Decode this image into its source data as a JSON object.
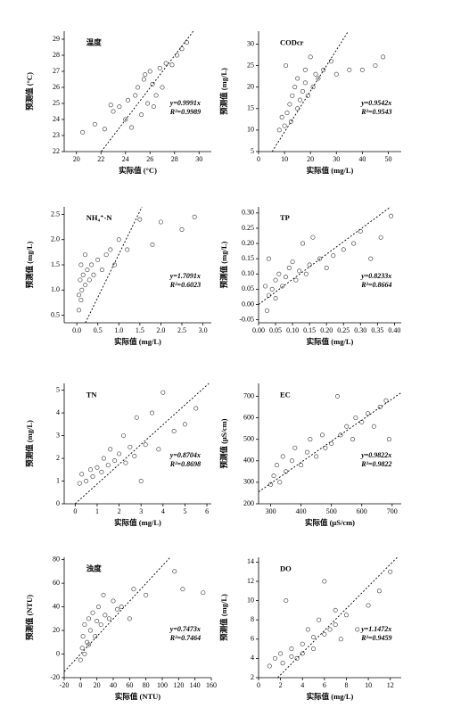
{
  "chart_data": [
    {
      "type": "scatter",
      "label": "温度",
      "xlabel": "实际值 (°C)",
      "ylabel": "预测值 (°C)",
      "equation": "y=0.9991x",
      "r2": "R²=0.9989",
      "slope": 0.9991,
      "x": [
        20.5,
        21.5,
        22.3,
        23,
        23.5,
        24,
        24.2,
        24.8,
        25,
        25.3,
        25.5,
        25.8,
        26,
        26.2,
        26.5,
        26.8,
        27,
        27.3,
        27.8,
        28.2,
        28.6,
        29,
        24.5,
        25.6,
        26.3,
        22.8
      ],
      "y": [
        23.2,
        23.7,
        23.4,
        24.5,
        24.8,
        24,
        25.2,
        25.5,
        26,
        24.3,
        26.5,
        25,
        27,
        26.2,
        25.5,
        27.2,
        26,
        27.5,
        27.4,
        28,
        28.4,
        28.8,
        23.5,
        26.8,
        24.8,
        24.9
      ],
      "xlim": [
        19,
        31
      ],
      "ylim": [
        22,
        29.5
      ],
      "xticks": [
        20,
        22,
        24,
        26,
        28,
        30
      ],
      "yticks": [
        22,
        23,
        24,
        25,
        26,
        27,
        28,
        29
      ]
    },
    {
      "type": "scatter",
      "label": "CODcr",
      "xlabel": "实际值 (mg/L)",
      "ylabel": "预测值 (mg/L)",
      "equation": "y=0.9542x",
      "r2": "R²=0.9543",
      "slope": 0.9542,
      "x": [
        8,
        9,
        10,
        10.5,
        11,
        12,
        12.5,
        13,
        14,
        15,
        15,
        16,
        17,
        18,
        18,
        19,
        20,
        21,
        22,
        23,
        25,
        28,
        30,
        35,
        40,
        45,
        48
      ],
      "y": [
        10,
        13,
        11,
        25,
        14,
        16,
        12,
        18,
        20,
        15,
        22,
        17,
        19,
        21,
        24,
        18,
        27,
        20,
        23,
        22,
        24,
        26,
        23,
        24,
        24,
        25,
        27
      ],
      "xlim": [
        0,
        55
      ],
      "ylim": [
        5,
        33
      ],
      "xticks": [
        0,
        10,
        20,
        30,
        40,
        50
      ],
      "yticks": [
        5,
        10,
        15,
        20,
        25,
        30
      ]
    },
    {
      "type": "scatter",
      "label": "NH₄⁺-N",
      "xlabel": "实际值 (mg/L)",
      "ylabel": "预测值 (mg/L)",
      "equation": "y=1.7091x",
      "r2": "R²=0.6023",
      "slope": 1.7091,
      "x": [
        0.05,
        0.05,
        0.08,
        0.1,
        0.1,
        0.12,
        0.15,
        0.2,
        0.2,
        0.25,
        0.3,
        0.35,
        0.4,
        0.5,
        0.6,
        0.7,
        0.8,
        0.9,
        1.0,
        1.2,
        1.5,
        1.8,
        2.0,
        2.5,
        2.8
      ],
      "y": [
        0.6,
        0.9,
        1.2,
        0.8,
        1.5,
        1.0,
        1.3,
        1.1,
        1.7,
        1.4,
        1.2,
        1.5,
        1.3,
        1.6,
        1.4,
        1.7,
        1.8,
        1.5,
        2.0,
        1.8,
        2.4,
        1.9,
        2.35,
        2.2,
        2.45
      ],
      "xlim": [
        -0.3,
        3.2
      ],
      "ylim": [
        0.35,
        2.65
      ],
      "xticks": [
        {
          "value": 0,
          "label": "0.0"
        },
        0.5,
        {
          "value": 1,
          "label": "1.0"
        },
        1.5,
        {
          "value": 2,
          "label": "2.0"
        },
        2.5,
        {
          "value": 3,
          "label": "3.0"
        }
      ],
      "yticks": [
        0.5,
        {
          "value": 1,
          "label": "1.0"
        },
        1.5,
        {
          "value": 2,
          "label": "2.0"
        },
        2.5
      ]
    },
    {
      "type": "scatter",
      "label": "TP",
      "xlabel": "实际值 (mg/L)",
      "ylabel": "预测值 (mg/L)",
      "equation": "y=0.8233x",
      "r2": "R²=0.8664",
      "slope": 0.8233,
      "x": [
        0.02,
        0.025,
        0.03,
        0.03,
        0.04,
        0.05,
        0.05,
        0.06,
        0.07,
        0.08,
        0.09,
        0.1,
        0.11,
        0.12,
        0.13,
        0.14,
        0.15,
        0.16,
        0.18,
        0.2,
        0.22,
        0.25,
        0.28,
        0.3,
        0.33,
        0.36,
        0.39
      ],
      "y": [
        0.06,
        -0.02,
        0.03,
        0.15,
        0.05,
        0.08,
        0.02,
        0.1,
        0.06,
        0.09,
        0.12,
        0.14,
        0.08,
        0.11,
        0.2,
        0.1,
        0.13,
        0.22,
        0.15,
        0.12,
        0.16,
        0.18,
        0.2,
        0.24,
        0.15,
        0.22,
        0.29
      ],
      "xlim": [
        0,
        0.42
      ],
      "ylim": [
        -0.06,
        0.32
      ],
      "xticks": [
        {
          "value": 0,
          "label": "0.00"
        },
        0.05,
        {
          "value": 0.1,
          "label": "0.10"
        },
        0.15,
        {
          "value": 0.2,
          "label": "0.20"
        },
        0.25,
        {
          "value": 0.3,
          "label": "0.30"
        },
        0.35,
        {
          "value": 0.4,
          "label": "0.40"
        }
      ],
      "yticks": [
        -0.05,
        {
          "value": 0,
          "label": "0.00"
        },
        0.05,
        {
          "value": 0.1,
          "label": "0.10"
        },
        0.15,
        {
          "value": 0.2,
          "label": "0.20"
        },
        0.25,
        {
          "value": 0.3,
          "label": "0.30"
        }
      ]
    },
    {
      "type": "scatter",
      "label": "TN",
      "xlabel": "实际值 (mg/L)",
      "ylabel": "预测值 (mg/L)",
      "equation": "y=0.8704x",
      "r2": "R²=0.8698",
      "slope": 0.8704,
      "x": [
        0.2,
        0.3,
        0.5,
        0.7,
        0.8,
        1.0,
        1.2,
        1.3,
        1.5,
        1.6,
        1.8,
        2.0,
        2.2,
        2.3,
        2.5,
        2.7,
        2.8,
        3.0,
        3.2,
        3.5,
        3.8,
        4.0,
        4.5,
        5.0,
        5.5
      ],
      "y": [
        0.9,
        1.3,
        1.0,
        1.5,
        1.2,
        1.6,
        1.4,
        2.0,
        1.7,
        2.4,
        1.9,
        2.2,
        3.0,
        1.8,
        2.5,
        2.1,
        3.8,
        1.0,
        2.6,
        4.0,
        2.4,
        4.9,
        3.2,
        3.5,
        4.2
      ],
      "xlim": [
        -0.5,
        6.2
      ],
      "ylim": [
        0,
        5.3
      ],
      "xticks": [
        0,
        1,
        2,
        3,
        4,
        5,
        6
      ],
      "yticks": [
        0,
        1,
        2,
        3,
        4,
        5
      ]
    },
    {
      "type": "scatter",
      "label": "EC",
      "xlabel": "实际值 (μS/cm)",
      "ylabel": "预测值 (μS/cm)",
      "equation": "y=0.9822x",
      "r2": "R²=0.9822",
      "slope": 0.9822,
      "x": [
        300,
        310,
        320,
        330,
        340,
        350,
        370,
        380,
        400,
        420,
        430,
        450,
        470,
        480,
        500,
        520,
        530,
        550,
        570,
        580,
        600,
        620,
        640,
        660,
        680,
        690
      ],
      "y": [
        290,
        330,
        380,
        300,
        420,
        350,
        400,
        460,
        380,
        440,
        500,
        420,
        520,
        460,
        480,
        700,
        520,
        560,
        500,
        600,
        580,
        620,
        560,
        650,
        680,
        500
      ],
      "xlim": [
        260,
        730
      ],
      "ylim": [
        200,
        760
      ],
      "xticks": [
        300,
        400,
        500,
        600,
        700
      ],
      "yticks": [
        200,
        300,
        400,
        500,
        600,
        700
      ]
    },
    {
      "type": "scatter",
      "label": "浊度",
      "xlabel": "实际值 (NTU)",
      "ylabel": "预测值 (NTU)",
      "equation": "y=0.7473x",
      "r2": "R²=0.7464",
      "slope": 0.7473,
      "x": [
        0,
        2,
        3,
        5,
        5,
        8,
        10,
        10,
        12,
        15,
        18,
        20,
        22,
        25,
        28,
        30,
        35,
        40,
        45,
        50,
        60,
        65,
        80,
        115,
        125,
        150
      ],
      "y": [
        -5,
        5,
        15,
        0,
        25,
        10,
        30,
        8,
        20,
        35,
        15,
        28,
        40,
        25,
        50,
        33,
        30,
        45,
        38,
        40,
        30,
        55,
        50,
        70,
        55,
        52
      ],
      "xlim": [
        -20,
        160
      ],
      "ylim": [
        -20,
        82
      ],
      "xticks": [
        -20,
        0,
        20,
        40,
        60,
        80,
        100,
        120,
        140,
        160
      ],
      "yticks": [
        -20,
        0,
        20,
        40,
        60,
        80
      ]
    },
    {
      "type": "scatter",
      "label": "DO",
      "xlabel": "实际值 (mg/L)",
      "ylabel": "预测值 (mg/L)",
      "equation": "y=1.1472x",
      "r2": "R²=0.9459",
      "slope": 1.1472,
      "x": [
        1,
        1.5,
        2,
        2.2,
        2.5,
        3,
        3,
        3.5,
        4,
        4,
        4.5,
        5,
        5,
        5.5,
        6,
        6,
        6.5,
        7,
        7,
        7.5,
        8,
        9,
        10,
        11,
        12
      ],
      "y": [
        3.2,
        4,
        4.5,
        3.5,
        10,
        4.2,
        5,
        4,
        5.5,
        4.5,
        7,
        5,
        6.2,
        8,
        6.5,
        12,
        7,
        7.5,
        9,
        6,
        8.5,
        7,
        9.5,
        11,
        13
      ],
      "xlim": [
        0,
        13
      ],
      "ylim": [
        2,
        14.5
      ],
      "xticks": [
        0,
        2,
        4,
        6,
        8,
        10,
        12
      ],
      "yticks": [
        2,
        4,
        6,
        8,
        10,
        12,
        14
      ]
    }
  ]
}
